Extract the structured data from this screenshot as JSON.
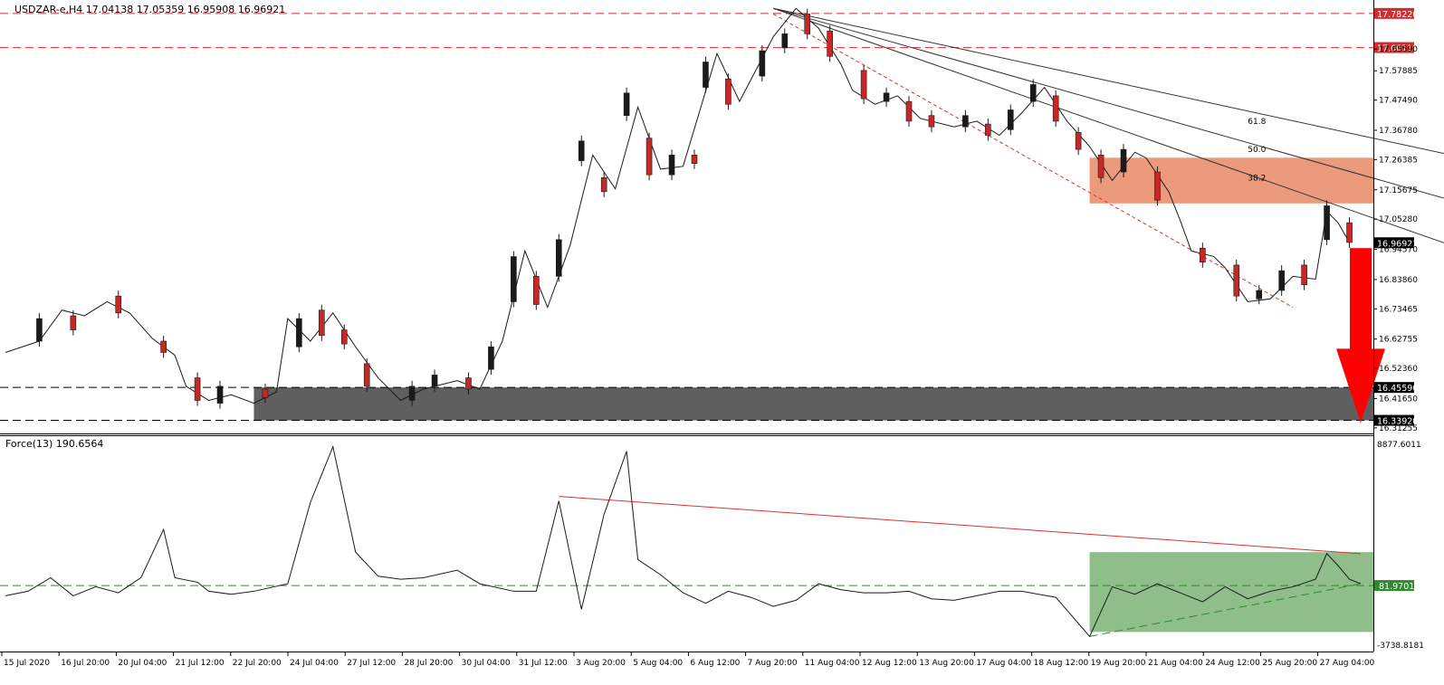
{
  "chart_data": [
    {
      "type": "candlestick",
      "header": "USDZAR-e,H4  17.04138 17.05359 16.95908 16.96921",
      "last_price_label": "16.96921",
      "y_tick_labels": [
        "17.65590",
        "17.57885",
        "17.47490",
        "17.36780",
        "17.26385",
        "17.15675",
        "17.05280",
        "16.94570",
        "16.83860",
        "16.73465",
        "16.62755",
        "16.52360",
        "16.41650",
        "16.31255"
      ],
      "x_tick_labels": [
        "15 Jul 2020",
        "16 Jul 20:00",
        "20 Jul 04:00",
        "21 Jul 12:00",
        "22 Jul 20:00",
        "24 Jul 04:00",
        "27 Jul 12:00",
        "28 Jul 20:00",
        "30 Jul 04:00",
        "31 Jul 12:00",
        "3 Aug 20:00",
        "5 Aug 04:00",
        "6 Aug 12:00",
        "7 Aug 20:00",
        "11 Aug 04:00",
        "12 Aug 12:00",
        "13 Aug 20:00",
        "17 Aug 04:00",
        "18 Aug 12:00",
        "19 Aug 20:00",
        "21 Aug 04:00",
        "24 Aug 12:00",
        "25 Aug 20:00",
        "27 Aug 04:00"
      ],
      "ylim": [
        16.2896,
        17.8298
      ],
      "close_path_x": [
        0,
        3,
        5,
        7,
        9,
        11,
        13,
        15,
        16,
        18,
        20,
        22,
        24,
        25,
        27,
        29,
        31,
        33,
        35,
        37,
        40,
        42,
        44,
        46,
        48,
        50,
        52,
        54,
        56,
        58,
        60,
        63,
        65,
        68,
        70,
        72,
        74,
        75,
        77,
        79,
        81,
        84,
        86,
        88,
        90,
        92,
        94,
        96,
        98,
        100,
        101,
        103,
        104,
        105,
        107,
        108,
        110,
        112,
        114,
        116,
        117,
        118,
        119
      ],
      "close_path_y": [
        16.58,
        16.62,
        16.73,
        16.71,
        16.76,
        16.72,
        16.63,
        16.57,
        16.46,
        16.41,
        16.43,
        16.4,
        16.44,
        16.7,
        16.62,
        16.72,
        16.6,
        16.49,
        16.41,
        16.45,
        16.48,
        16.45,
        16.62,
        16.94,
        16.74,
        16.96,
        17.28,
        17.16,
        17.45,
        17.23,
        17.24,
        17.64,
        17.47,
        17.7,
        17.8,
        17.73,
        17.6,
        17.51,
        17.46,
        17.49,
        17.41,
        17.38,
        17.4,
        17.35,
        17.43,
        17.52,
        17.4,
        17.31,
        17.19,
        17.29,
        17.27,
        17.15,
        17.05,
        16.94,
        16.92,
        16.88,
        16.76,
        16.77,
        16.85,
        16.84,
        17.08,
        17.04,
        16.97
      ],
      "candles": [
        {
          "i": 3,
          "o": 16.62,
          "c": 16.7
        },
        {
          "i": 6,
          "o": 16.71,
          "c": 16.66
        },
        {
          "i": 10,
          "o": 16.78,
          "c": 16.72
        },
        {
          "i": 14,
          "o": 16.62,
          "c": 16.58
        },
        {
          "i": 17,
          "o": 16.49,
          "c": 16.41
        },
        {
          "i": 19,
          "o": 16.4,
          "c": 16.46
        },
        {
          "i": 23,
          "o": 16.45,
          "c": 16.42
        },
        {
          "i": 26,
          "o": 16.6,
          "c": 16.7
        },
        {
          "i": 28,
          "o": 16.73,
          "c": 16.64
        },
        {
          "i": 30,
          "o": 16.66,
          "c": 16.61
        },
        {
          "i": 32,
          "o": 16.54,
          "c": 16.46
        },
        {
          "i": 36,
          "o": 16.41,
          "c": 16.46
        },
        {
          "i": 38,
          "o": 16.46,
          "c": 16.5
        },
        {
          "i": 41,
          "o": 16.49,
          "c": 16.45
        },
        {
          "i": 43,
          "o": 16.52,
          "c": 16.6
        },
        {
          "i": 45,
          "o": 16.76,
          "c": 16.92
        },
        {
          "i": 47,
          "o": 16.85,
          "c": 16.75
        },
        {
          "i": 49,
          "o": 16.85,
          "c": 16.98
        },
        {
          "i": 51,
          "o": 17.26,
          "c": 17.33
        },
        {
          "i": 53,
          "o": 17.2,
          "c": 17.15
        },
        {
          "i": 55,
          "o": 17.42,
          "c": 17.5
        },
        {
          "i": 57,
          "o": 17.34,
          "c": 17.21
        },
        {
          "i": 59,
          "o": 17.21,
          "c": 17.28
        },
        {
          "i": 61,
          "o": 17.28,
          "c": 17.25
        },
        {
          "i": 62,
          "o": 17.52,
          "c": 17.61
        },
        {
          "i": 64,
          "o": 17.55,
          "c": 17.46
        },
        {
          "i": 67,
          "o": 17.56,
          "c": 17.65
        },
        {
          "i": 69,
          "o": 17.66,
          "c": 17.71
        },
        {
          "i": 71,
          "o": 17.78,
          "c": 17.71
        },
        {
          "i": 73,
          "o": 17.72,
          "c": 17.63
        },
        {
          "i": 76,
          "o": 17.58,
          "c": 17.48
        },
        {
          "i": 78,
          "o": 17.47,
          "c": 17.5
        },
        {
          "i": 80,
          "o": 17.47,
          "c": 17.4
        },
        {
          "i": 82,
          "o": 17.42,
          "c": 17.38
        },
        {
          "i": 85,
          "o": 17.38,
          "c": 17.42
        },
        {
          "i": 87,
          "o": 17.39,
          "c": 17.35
        },
        {
          "i": 89,
          "o": 17.37,
          "c": 17.44
        },
        {
          "i": 91,
          "o": 17.47,
          "c": 17.53
        },
        {
          "i": 93,
          "o": 17.49,
          "c": 17.4
        },
        {
          "i": 95,
          "o": 17.36,
          "c": 17.3
        },
        {
          "i": 97,
          "o": 17.28,
          "c": 17.2
        },
        {
          "i": 99,
          "o": 17.22,
          "c": 17.3
        },
        {
          "i": 102,
          "o": 17.22,
          "c": 17.12
        },
        {
          "i": 106,
          "o": 16.95,
          "c": 16.9
        },
        {
          "i": 109,
          "o": 16.89,
          "c": 16.78
        },
        {
          "i": 111,
          "o": 16.77,
          "c": 16.8
        },
        {
          "i": 113,
          "o": 16.8,
          "c": 16.87
        },
        {
          "i": 115,
          "o": 16.89,
          "c": 16.82
        },
        {
          "i": 117,
          "o": 16.98,
          "c": 17.1
        },
        {
          "i": 119,
          "o": 17.04,
          "c": 16.97
        }
      ],
      "n_bars": 120,
      "horizontal_lines": [
        {
          "value": 17.7822,
          "label": "17.78220",
          "color": "#d82a2a",
          "label_bg": "#d82a2a",
          "style": "dashed"
        },
        {
          "value": 17.6611,
          "label": "17.66110",
          "color": "#d82a2a",
          "label_bg": "#d82a2a",
          "style": "dashed"
        },
        {
          "value": 16.4559,
          "label": "16.45590",
          "color": "#000000",
          "label_bg": "#000000",
          "style": "dashed"
        },
        {
          "value": 16.3392,
          "label": "16.33920",
          "color": "#000000",
          "label_bg": "#000000",
          "style": "dashed"
        }
      ],
      "zones": [
        {
          "name": "resistance-zone",
          "from": 17.1085,
          "to": 17.2705,
          "x_start": 96,
          "color": "#eb9a7c"
        },
        {
          "name": "support-zone",
          "from": 16.3392,
          "to": 16.4559,
          "x_start": 22,
          "color": "#5f5f5f"
        }
      ],
      "fan": {
        "origin": {
          "x": 68,
          "y": 17.8
        },
        "lines": [
          {
            "label": "61.8",
            "end_x": 128,
            "end_y": 17.28,
            "label_x": 110,
            "label_y": 17.39
          },
          {
            "label": "50.0",
            "end_x": 128,
            "end_y": 17.12,
            "label_x": 110,
            "label_y": 17.29
          },
          {
            "label": "38.2",
            "end_x": 128,
            "end_y": 16.96,
            "label_x": 110,
            "label_y": 17.19
          }
        ]
      },
      "trend_line": {
        "x1": 68,
        "y1": 17.78,
        "x2": 114,
        "y2": 16.74,
        "color": "#e03030"
      },
      "arrow": {
        "from_x": 120,
        "from_y": 16.95,
        "to_x": 120,
        "to_y": 16.33,
        "color": "#ff0000"
      },
      "colors": {
        "bull": "#1a1a1a",
        "bear": "#c62828",
        "wick": "#1a1a1a"
      }
    },
    {
      "type": "line",
      "header": "Force(13) 190.6564",
      "current_label": "81.9701",
      "y_tick_labels": [
        "8877.6011",
        "-3738.8181"
      ],
      "ylim": [
        -4300,
        10000
      ],
      "x": [
        0,
        2,
        4,
        6,
        8,
        10,
        12,
        13,
        14,
        15,
        17,
        18,
        20,
        22,
        25,
        27,
        29,
        31,
        33,
        35,
        37,
        40,
        42,
        45,
        47,
        49,
        51,
        53,
        55,
        56,
        58,
        60,
        62,
        64,
        66,
        68,
        70,
        72,
        74,
        76,
        78,
        80,
        82,
        84,
        86,
        88,
        90,
        93,
        96,
        98,
        100,
        102,
        104,
        106,
        108,
        110,
        112,
        114,
        116,
        117,
        118,
        119,
        120
      ],
      "y": [
        -600,
        -300,
        600,
        -600,
        0,
        -400,
        600,
        2200,
        3800,
        600,
        300,
        -300,
        -500,
        -300,
        200,
        5600,
        9300,
        2300,
        700,
        500,
        600,
        1100,
        200,
        -300,
        -300,
        5700,
        -1500,
        4800,
        9000,
        1800,
        800,
        -400,
        -1100,
        -300,
        -700,
        -1300,
        -900,
        200,
        -200,
        -400,
        -400,
        -300,
        -800,
        -900,
        -600,
        -300,
        -300,
        -700,
        -3300,
        0,
        -500,
        200,
        -400,
        -1000,
        0,
        -800,
        -300,
        0,
        500,
        2200,
        1400,
        500,
        200
      ],
      "reference_line": {
        "value": 81.9701,
        "color": "#2e8b2e",
        "style": "dashed"
      },
      "downtrend": {
        "x1": 49,
        "y1": 6000,
        "x2": 120,
        "y2": 2200,
        "color": "#e03030"
      },
      "uptrend": {
        "x1": 96,
        "y1": -3300,
        "x2": 120,
        "y2": 200,
        "color": "#2e8b2e",
        "style": "dashed"
      },
      "highlight_zone": {
        "x_start": 96,
        "x_end": 121,
        "from": -3000,
        "to": 2300,
        "color": "#8fbe8a"
      }
    }
  ]
}
